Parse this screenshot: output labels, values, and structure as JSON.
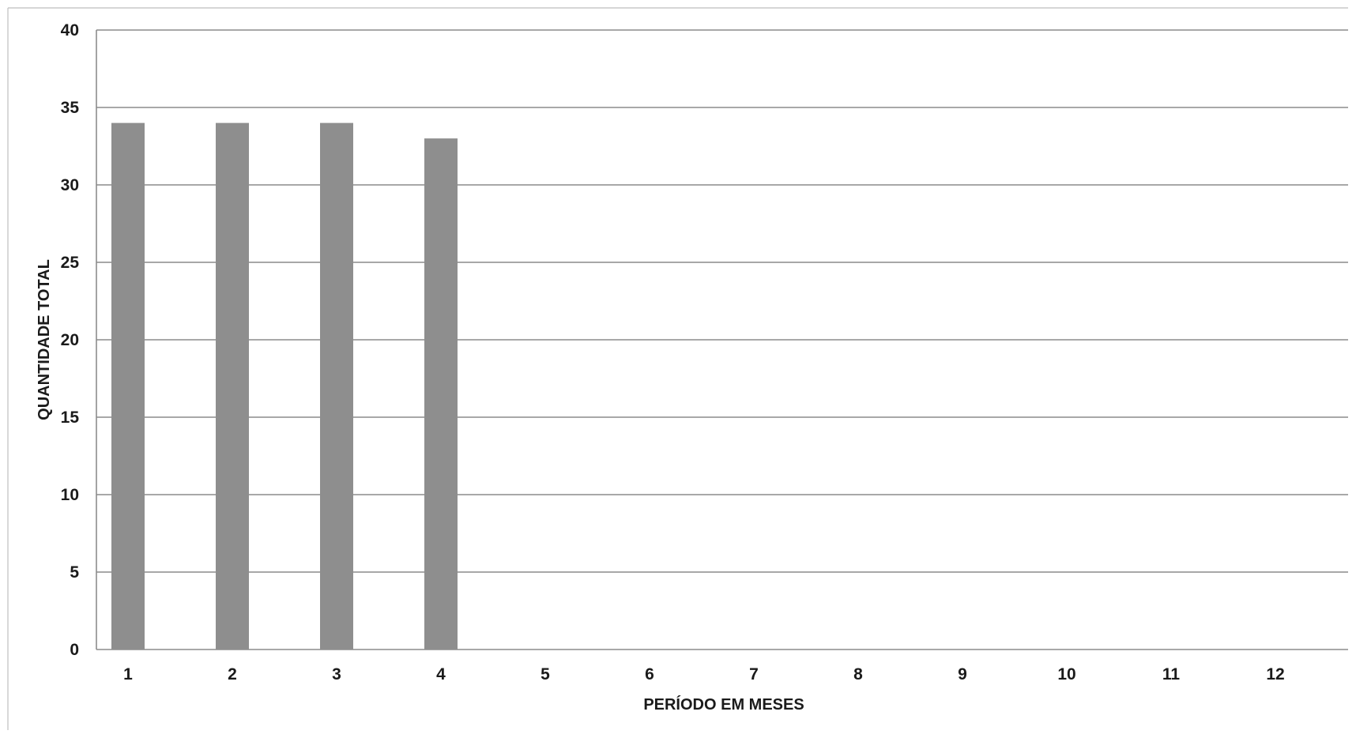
{
  "chart_data": {
    "type": "bar",
    "categories": [
      "1",
      "2",
      "3",
      "4",
      "5",
      "6",
      "7",
      "8",
      "9",
      "10",
      "11",
      "12"
    ],
    "values": [
      34,
      34,
      34,
      33,
      null,
      null,
      null,
      null,
      null,
      null,
      null,
      null
    ],
    "title": "",
    "xlabel": "PERÍODO EM MESES",
    "ylabel": "QUANTIDADE TOTAL",
    "ylim": [
      0,
      40
    ],
    "yticks": [
      "0",
      "5",
      "10",
      "15",
      "20",
      "25",
      "30",
      "35",
      "40"
    ],
    "grid": true,
    "legend": "none",
    "bar_color": "#8e8e8e",
    "grid_color": "#8c8c8c"
  }
}
